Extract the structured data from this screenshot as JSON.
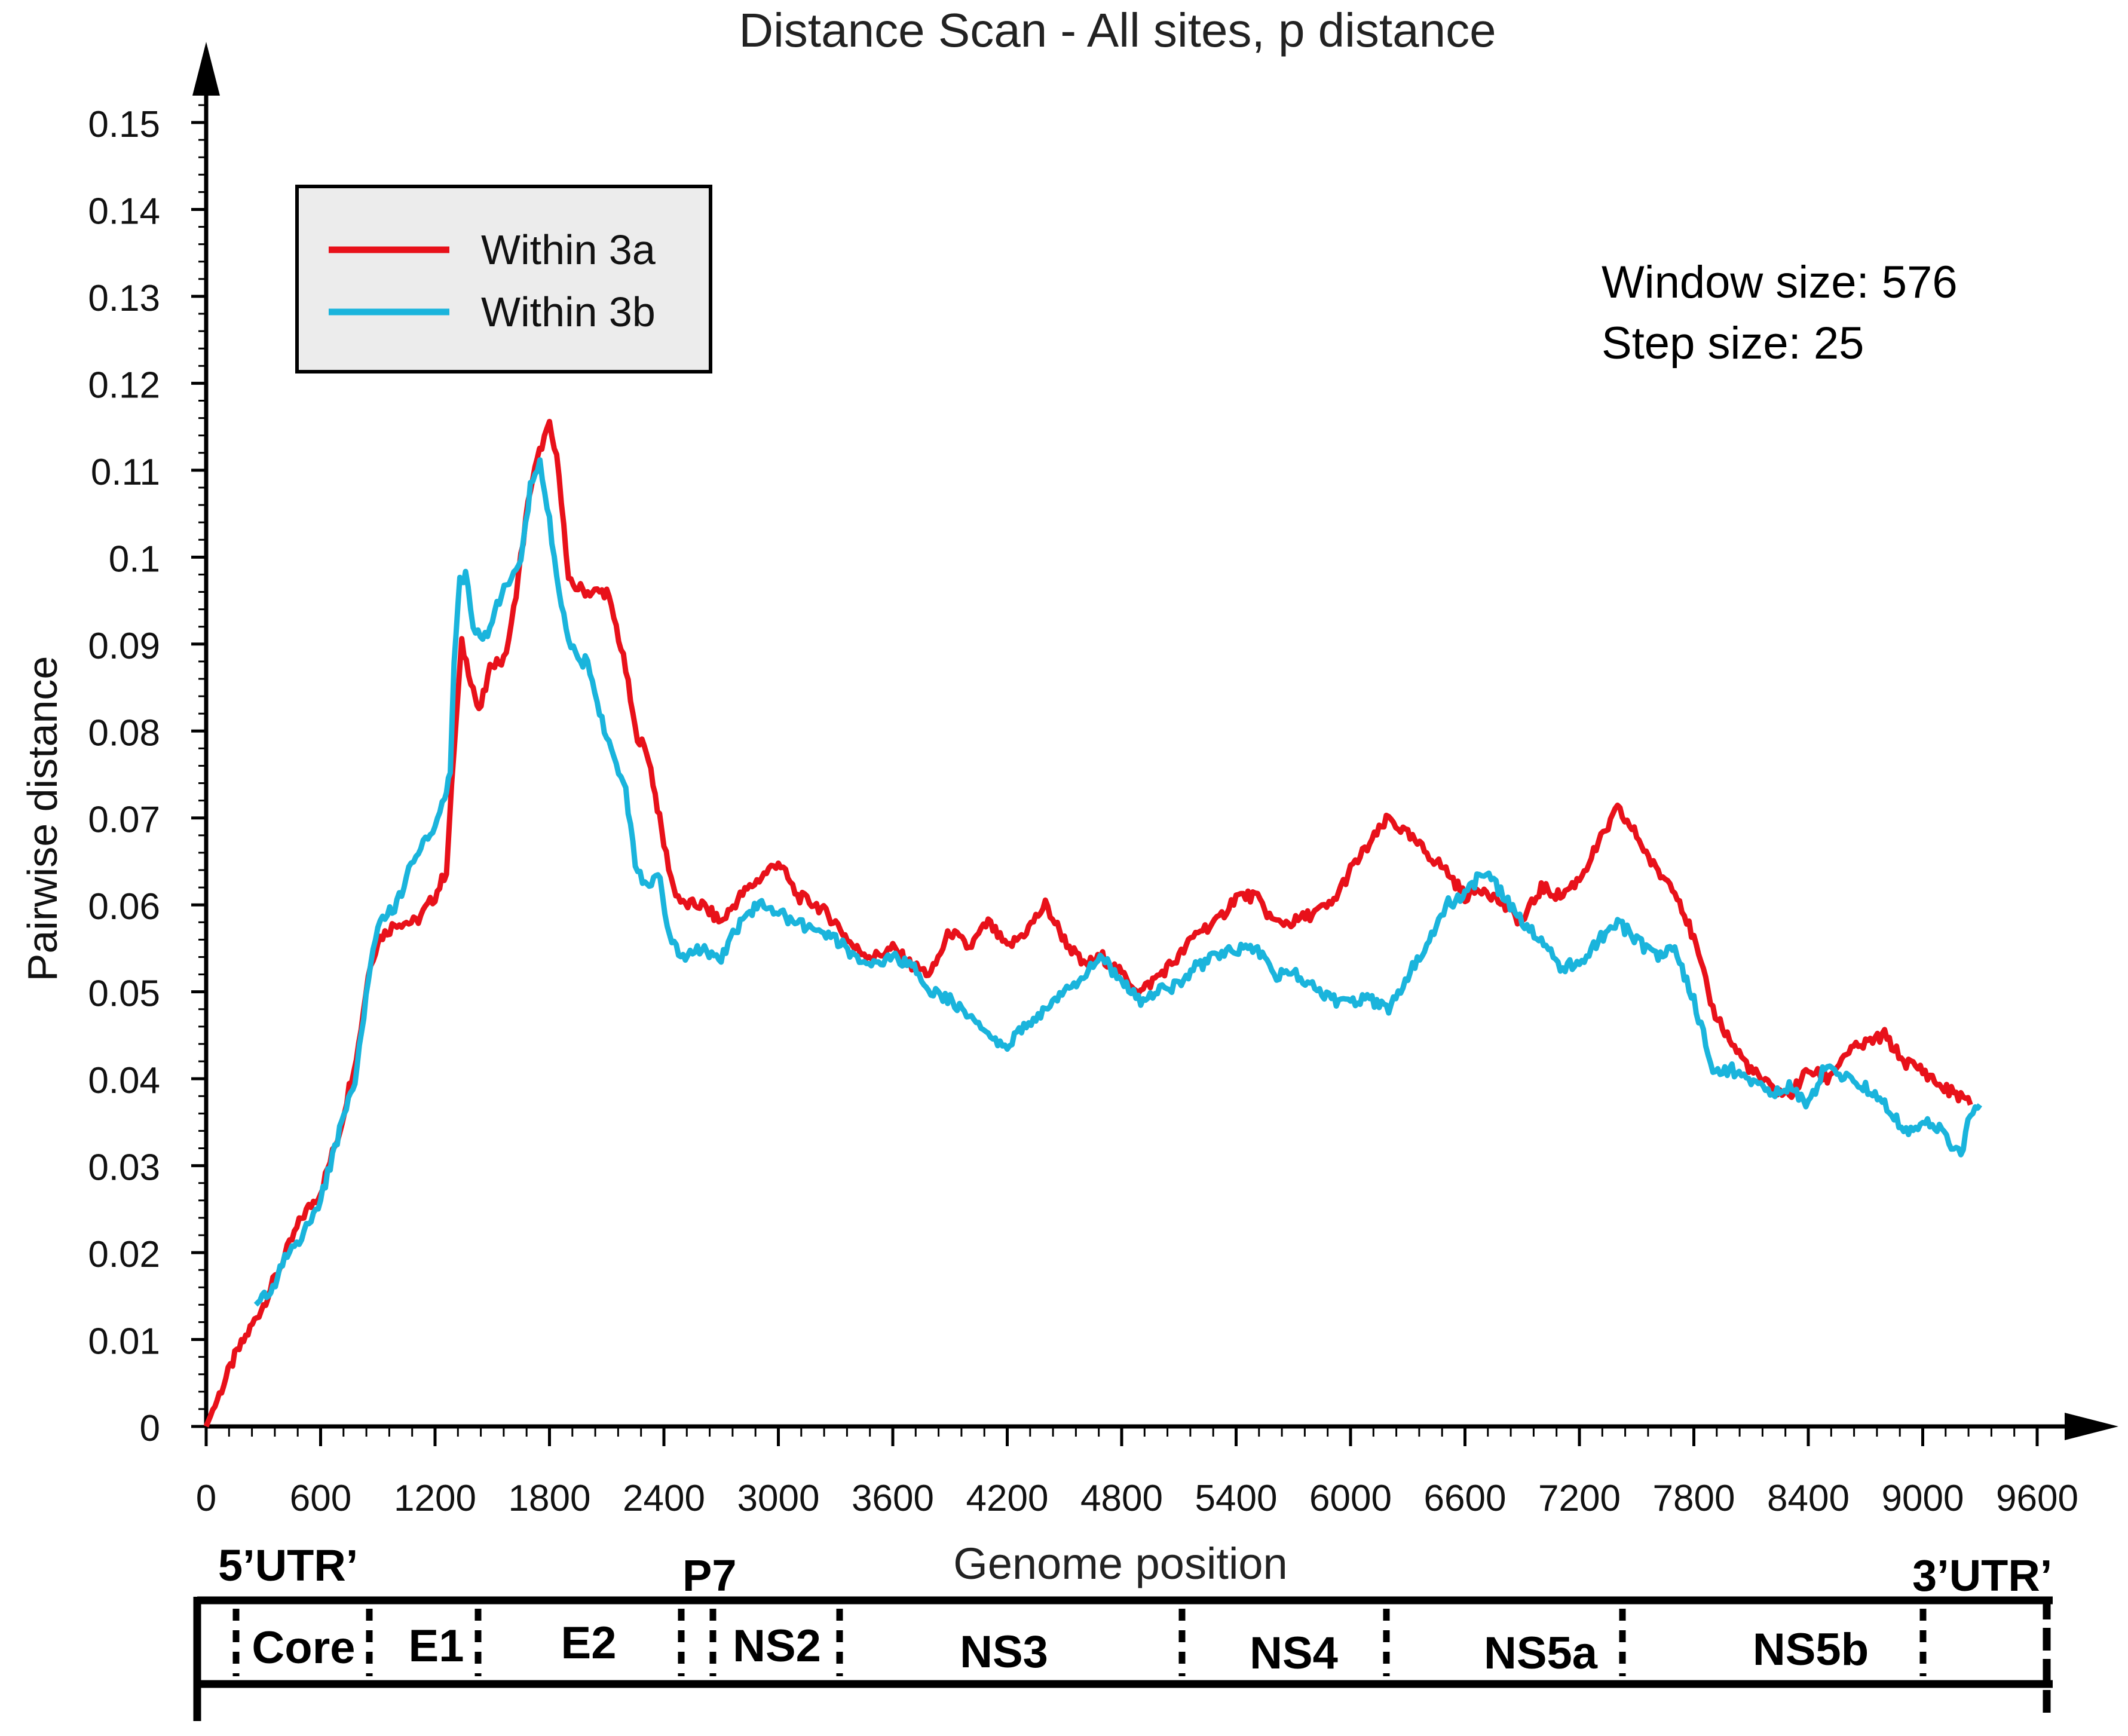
{
  "colors": {
    "within_3a": "#e8111a",
    "within_3b": "#1ab4dc",
    "axis": "#000000",
    "legend_bg": "#ececec"
  },
  "chart_data": {
    "type": "line",
    "title": "Distance Scan - All sites, p distance",
    "xlabel": "Genome position",
    "ylabel": "Pairwise distance",
    "xlim": [
      0,
      9600
    ],
    "ylim": [
      0,
      0.155
    ],
    "x_ticks": [
      0,
      600,
      1200,
      1800,
      2400,
      3000,
      3600,
      4200,
      4800,
      5400,
      6000,
      6600,
      7200,
      7800,
      8400,
      9000,
      9600
    ],
    "y_ticks": [
      0,
      0.01,
      0.02,
      0.03,
      0.04,
      0.05,
      0.06,
      0.07,
      0.08,
      0.09,
      0.1,
      0.11,
      0.12,
      0.13,
      0.14,
      0.15
    ],
    "y_tick_labels": [
      "0",
      "0.01",
      "0.02",
      "0.03",
      "0.04",
      "0.05",
      "0.06",
      "0.07",
      "0.08",
      "0.09",
      "0.1",
      "0.11",
      "0.12",
      "0.13",
      "0.14",
      "0.15"
    ],
    "legend": {
      "position": "top-left",
      "entries": [
        "Within 3a",
        "Within 3b"
      ]
    },
    "annotation": {
      "line1": "Window size: 576",
      "line2": "Step size: 25"
    },
    "series": [
      {
        "name": "Within 3a",
        "color": "#e8111a",
        "points": [
          [
            0,
            0
          ],
          [
            150,
            0.008
          ],
          [
            300,
            0.014
          ],
          [
            400,
            0.019
          ],
          [
            500,
            0.024
          ],
          [
            600,
            0.027
          ],
          [
            700,
            0.034
          ],
          [
            800,
            0.044
          ],
          [
            850,
            0.052
          ],
          [
            900,
            0.056
          ],
          [
            1000,
            0.058
          ],
          [
            1100,
            0.058
          ],
          [
            1200,
            0.061
          ],
          [
            1260,
            0.064
          ],
          [
            1300,
            0.078
          ],
          [
            1340,
            0.09
          ],
          [
            1400,
            0.085
          ],
          [
            1430,
            0.082
          ],
          [
            1500,
            0.088
          ],
          [
            1560,
            0.088
          ],
          [
            1600,
            0.092
          ],
          [
            1650,
            0.1
          ],
          [
            1700,
            0.108
          ],
          [
            1760,
            0.113
          ],
          [
            1800,
            0.115
          ],
          [
            1850,
            0.11
          ],
          [
            1900,
            0.097
          ],
          [
            2000,
            0.096
          ],
          [
            2100,
            0.096
          ],
          [
            2150,
            0.092
          ],
          [
            2200,
            0.087
          ],
          [
            2250,
            0.08
          ],
          [
            2320,
            0.077
          ],
          [
            2400,
            0.067
          ],
          [
            2450,
            0.062
          ],
          [
            2500,
            0.06
          ],
          [
            2600,
            0.06
          ],
          [
            2700,
            0.058
          ],
          [
            2800,
            0.061
          ],
          [
            2900,
            0.063
          ],
          [
            3000,
            0.065
          ],
          [
            3100,
            0.061
          ],
          [
            3200,
            0.06
          ],
          [
            3300,
            0.058
          ],
          [
            3400,
            0.055
          ],
          [
            3500,
            0.054
          ],
          [
            3600,
            0.055
          ],
          [
            3700,
            0.053
          ],
          [
            3800,
            0.052
          ],
          [
            3900,
            0.057
          ],
          [
            4000,
            0.055
          ],
          [
            4100,
            0.058
          ],
          [
            4200,
            0.055
          ],
          [
            4300,
            0.057
          ],
          [
            4400,
            0.06
          ],
          [
            4500,
            0.056
          ],
          [
            4600,
            0.053
          ],
          [
            4700,
            0.054
          ],
          [
            4800,
            0.052
          ],
          [
            4900,
            0.05
          ],
          [
            5000,
            0.052
          ],
          [
            5100,
            0.054
          ],
          [
            5200,
            0.057
          ],
          [
            5300,
            0.058
          ],
          [
            5400,
            0.061
          ],
          [
            5500,
            0.061
          ],
          [
            5600,
            0.058
          ],
          [
            5700,
            0.058
          ],
          [
            5800,
            0.059
          ],
          [
            5900,
            0.06
          ],
          [
            6000,
            0.064
          ],
          [
            6100,
            0.067
          ],
          [
            6200,
            0.07
          ],
          [
            6300,
            0.068
          ],
          [
            6400,
            0.066
          ],
          [
            6500,
            0.064
          ],
          [
            6600,
            0.061
          ],
          [
            6700,
            0.062
          ],
          [
            6800,
            0.06
          ],
          [
            6900,
            0.058
          ],
          [
            7000,
            0.062
          ],
          [
            7100,
            0.061
          ],
          [
            7200,
            0.063
          ],
          [
            7300,
            0.067
          ],
          [
            7400,
            0.071
          ],
          [
            7500,
            0.068
          ],
          [
            7600,
            0.064
          ],
          [
            7700,
            0.062
          ],
          [
            7800,
            0.056
          ],
          [
            7900,
            0.048
          ],
          [
            8000,
            0.044
          ],
          [
            8100,
            0.041
          ],
          [
            8200,
            0.039
          ],
          [
            8300,
            0.038
          ],
          [
            8400,
            0.041
          ],
          [
            8500,
            0.04
          ],
          [
            8600,
            0.043
          ],
          [
            8700,
            0.044
          ],
          [
            8800,
            0.045
          ],
          [
            8900,
            0.042
          ],
          [
            9000,
            0.041
          ],
          [
            9100,
            0.039
          ],
          [
            9200,
            0.038
          ],
          [
            9250,
            0.037
          ]
        ]
      },
      {
        "name": "Within 3b",
        "color": "#1ab4dc",
        "points": [
          [
            260,
            0.014
          ],
          [
            350,
            0.016
          ],
          [
            400,
            0.019
          ],
          [
            500,
            0.022
          ],
          [
            600,
            0.026
          ],
          [
            700,
            0.034
          ],
          [
            780,
            0.04
          ],
          [
            850,
            0.051
          ],
          [
            900,
            0.058
          ],
          [
            1000,
            0.06
          ],
          [
            1050,
            0.063
          ],
          [
            1100,
            0.066
          ],
          [
            1200,
            0.069
          ],
          [
            1250,
            0.072
          ],
          [
            1280,
            0.075
          ],
          [
            1300,
            0.088
          ],
          [
            1330,
            0.097
          ],
          [
            1360,
            0.098
          ],
          [
            1400,
            0.092
          ],
          [
            1450,
            0.09
          ],
          [
            1500,
            0.093
          ],
          [
            1550,
            0.096
          ],
          [
            1600,
            0.097
          ],
          [
            1650,
            0.1
          ],
          [
            1700,
            0.108
          ],
          [
            1750,
            0.111
          ],
          [
            1800,
            0.104
          ],
          [
            1850,
            0.096
          ],
          [
            1900,
            0.091
          ],
          [
            1950,
            0.088
          ],
          [
            2000,
            0.088
          ],
          [
            2050,
            0.083
          ],
          [
            2100,
            0.079
          ],
          [
            2200,
            0.073
          ],
          [
            2250,
            0.065
          ],
          [
            2300,
            0.062
          ],
          [
            2380,
            0.063
          ],
          [
            2430,
            0.056
          ],
          [
            2500,
            0.054
          ],
          [
            2600,
            0.055
          ],
          [
            2700,
            0.054
          ],
          [
            2800,
            0.058
          ],
          [
            2900,
            0.06
          ],
          [
            3000,
            0.059
          ],
          [
            3100,
            0.058
          ],
          [
            3200,
            0.057
          ],
          [
            3300,
            0.056
          ],
          [
            3400,
            0.054
          ],
          [
            3500,
            0.053
          ],
          [
            3600,
            0.054
          ],
          [
            3700,
            0.053
          ],
          [
            3800,
            0.05
          ],
          [
            3900,
            0.049
          ],
          [
            4000,
            0.047
          ],
          [
            4100,
            0.045
          ],
          [
            4200,
            0.044
          ],
          [
            4300,
            0.046
          ],
          [
            4400,
            0.048
          ],
          [
            4500,
            0.05
          ],
          [
            4600,
            0.052
          ],
          [
            4700,
            0.054
          ],
          [
            4800,
            0.051
          ],
          [
            4900,
            0.049
          ],
          [
            5000,
            0.05
          ],
          [
            5100,
            0.051
          ],
          [
            5200,
            0.053
          ],
          [
            5300,
            0.054
          ],
          [
            5400,
            0.055
          ],
          [
            5500,
            0.055
          ],
          [
            5600,
            0.052
          ],
          [
            5700,
            0.052
          ],
          [
            5800,
            0.051
          ],
          [
            5900,
            0.049
          ],
          [
            6000,
            0.049
          ],
          [
            6100,
            0.049
          ],
          [
            6200,
            0.048
          ],
          [
            6300,
            0.052
          ],
          [
            6400,
            0.055
          ],
          [
            6500,
            0.06
          ],
          [
            6600,
            0.061
          ],
          [
            6700,
            0.064
          ],
          [
            6800,
            0.061
          ],
          [
            6900,
            0.058
          ],
          [
            7000,
            0.056
          ],
          [
            7100,
            0.053
          ],
          [
            7200,
            0.053
          ],
          [
            7300,
            0.056
          ],
          [
            7400,
            0.058
          ],
          [
            7500,
            0.056
          ],
          [
            7600,
            0.054
          ],
          [
            7700,
            0.055
          ],
          [
            7800,
            0.049
          ],
          [
            7900,
            0.041
          ],
          [
            8000,
            0.041
          ],
          [
            8100,
            0.04
          ],
          [
            8200,
            0.038
          ],
          [
            8300,
            0.039
          ],
          [
            8400,
            0.037
          ],
          [
            8500,
            0.042
          ],
          [
            8600,
            0.04
          ],
          [
            8700,
            0.039
          ],
          [
            8800,
            0.037
          ],
          [
            8900,
            0.034
          ],
          [
            9000,
            0.035
          ],
          [
            9100,
            0.034
          ],
          [
            9200,
            0.031
          ],
          [
            9250,
            0.036
          ],
          [
            9300,
            0.037
          ]
        ]
      }
    ]
  },
  "genome_map": {
    "segments": [
      "Core",
      "E1",
      "E2",
      "NS2",
      "NS3",
      "NS4",
      "NS5a",
      "NS5b"
    ],
    "utr5_label": "5’UTR’",
    "p7_label": "P7",
    "utr3_label": "3’UTR’"
  }
}
